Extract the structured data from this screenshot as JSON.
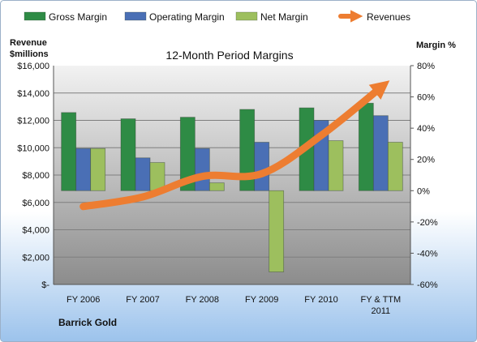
{
  "chart_data": {
    "type": "bar",
    "title": "12-Month Period Margins",
    "company": "Barrick Gold",
    "left_axis_title": [
      "Revenue",
      "$millions"
    ],
    "right_axis_title": "Margin %",
    "categories": [
      "FY 2006",
      "FY 2007",
      "FY 2008",
      "FY 2009",
      "FY 2010",
      "FY & TTM 2011"
    ],
    "category_labels": [
      [
        "FY 2006"
      ],
      [
        "FY 2007"
      ],
      [
        "FY 2008"
      ],
      [
        "FY 2009"
      ],
      [
        "FY 2010"
      ],
      [
        "FY & TTM",
        "2011"
      ]
    ],
    "left_axis": {
      "min": 0,
      "max": 16000,
      "step": 2000,
      "tick_labels": [
        "$-",
        "$2,000",
        "$4,000",
        "$6,000",
        "$8,000",
        "$10,000",
        "$12,000",
        "$14,000",
        "$16,000"
      ]
    },
    "right_axis": {
      "min": -60,
      "max": 80,
      "step": 20,
      "tick_labels": [
        "-60%",
        "-40%",
        "-20%",
        "0%",
        "20%",
        "40%",
        "60%",
        "80%"
      ]
    },
    "series": [
      {
        "name": "Gross Margin",
        "axis": "right",
        "kind": "bar",
        "color": "#2E8B45",
        "values": [
          50,
          46,
          47,
          52,
          53,
          56
        ]
      },
      {
        "name": "Operating Margin",
        "axis": "right",
        "kind": "bar",
        "color": "#4A6FB5",
        "values": [
          27,
          21,
          27,
          31,
          45,
          48
        ]
      },
      {
        "name": "Net Margin",
        "axis": "right",
        "kind": "bar",
        "color": "#9DBF5E",
        "values": [
          27,
          18,
          5,
          -52,
          32,
          31
        ]
      },
      {
        "name": "Revenues",
        "axis": "left",
        "kind": "line",
        "color": "#ED7D31",
        "values": [
          5700,
          6400,
          7900,
          8100,
          10900,
          14400
        ]
      }
    ],
    "legend_position": "top",
    "grid": true
  }
}
